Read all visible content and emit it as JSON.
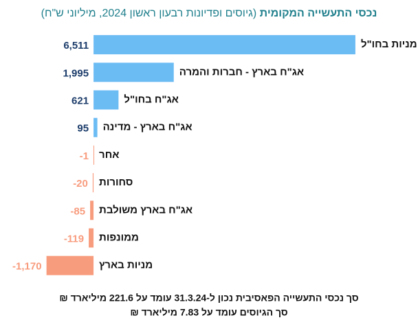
{
  "chart_data": {
    "type": "barh",
    "subtitle_bold": "נכסי התעשייה המקומית",
    "subtitle": "(גיוסים ופדיונות רבעון ראשון 2024, מיליוני ש\"ח)",
    "categories": [
      "מניות בחו\"ל",
      "אג\"ח בארץ - חברות והמרה",
      "אג\"ח בחו\"ל",
      "אג\"ח בארץ - מדינה",
      "אחר",
      "סחורות",
      "אג\"ח בארץ משולבת",
      "ממונפות",
      "מניות בארץ"
    ],
    "values": [
      6511,
      1995,
      621,
      95,
      -1,
      -20,
      -85,
      -119,
      -1170
    ],
    "value_labels": [
      "6,511",
      "1,995",
      "621",
      "95",
      "-1",
      "-20",
      "-85",
      "-119",
      "-1,170"
    ],
    "positive_color": "#6cbcf4",
    "negative_color": "#f89c7e",
    "xlim": [
      -2300,
      7700
    ],
    "footnotes": [
      "סך נכסי התעשייה הפאסיבית נכון ל-31.3.24 עומד על 221.6 מיליארד ₪",
      "סך הגיוסים עומד על 7.83 מיליארד ₪"
    ]
  }
}
